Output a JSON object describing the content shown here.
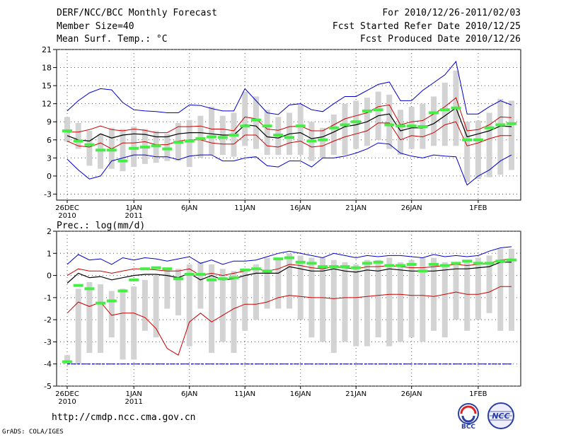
{
  "header": {
    "title": "DERF/NCC/BCC Monthly Forecast",
    "member_size": "Member Size=40",
    "variable": "Mean Surf. Temp.: °C",
    "period": "For 2010/12/26-2011/02/03",
    "start_date": "Fcst Started Refer Date 2010/12/25",
    "produced_date": "Fcst Produced Date 2010/12/26"
  },
  "panel2_label": "Prec.: log(mm/d)",
  "footer": {
    "url": "http://cmdp.ncc.cma.gov.cn",
    "grads": "GrADS: COLA/IGES",
    "logo1": "BCC",
    "logo2": "NCC"
  },
  "colors": {
    "mean": "#000000",
    "spread": "#cc0000",
    "extreme": "#0000cc",
    "box": "#d3d3d3",
    "member": "#44ee44"
  },
  "chart_data": [
    {
      "type": "line",
      "title": "Mean Surf. Temp.: °C",
      "days": 40,
      "ylim": [
        -4,
        21
      ],
      "yticks": [
        -3,
        0,
        3,
        6,
        9,
        12,
        15,
        18,
        21
      ],
      "xticks": [
        {
          "day": 0,
          "label": "26DEC",
          "sub": "2010"
        },
        {
          "day": 6,
          "label": "1JAN",
          "sub": "2011"
        },
        {
          "day": 11,
          "label": "6JAN",
          "sub": ""
        },
        {
          "day": 16,
          "label": "11JAN",
          "sub": ""
        },
        {
          "day": 21,
          "label": "16JAN",
          "sub": ""
        },
        {
          "day": 26,
          "label": "21JAN",
          "sub": ""
        },
        {
          "day": 31,
          "label": "26JAN",
          "sub": ""
        },
        {
          "day": 37,
          "label": "1FEB",
          "sub": ""
        }
      ],
      "series": [
        {
          "name": "max",
          "values": [
            10.8,
            12.5,
            13.8,
            14.5,
            14.3,
            12.2,
            11,
            10.8,
            10.7,
            10.5,
            10.5,
            11.8,
            11.7,
            11.2,
            10.8,
            10.8,
            14.5,
            12.5,
            10.5,
            10.2,
            11.8,
            12,
            11,
            10.7,
            12,
            13.2,
            13.2,
            14.2,
            15.2,
            15.6,
            12.5,
            12.5,
            14.2,
            15.5,
            16.8,
            19,
            10.3,
            10.3,
            11.5,
            12.5,
            11.8
          ]
        },
        {
          "name": "upper",
          "values": [
            7.3,
            7.3,
            7.7,
            8.3,
            7.7,
            7.5,
            7.8,
            7.6,
            7.2,
            7.2,
            8.2,
            8.2,
            8.3,
            7.8,
            7.8,
            7.5,
            9.8,
            9.5,
            7.8,
            7.6,
            8.2,
            8.3,
            7.5,
            7.5,
            8.5,
            9.5,
            10,
            10.5,
            11.5,
            11.8,
            8.5,
            9,
            9.2,
            10.3,
            11.5,
            13,
            7.5,
            7.7,
            8.5,
            9.8,
            9.7
          ]
        },
        {
          "name": "mean",
          "values": [
            6.7,
            6,
            5.8,
            7,
            6.3,
            6.8,
            7,
            6.9,
            6.5,
            6.5,
            7,
            7.2,
            7.2,
            7,
            6.8,
            6.8,
            8.5,
            8.3,
            6.5,
            6.3,
            7,
            7.2,
            6.2,
            6.5,
            7.3,
            8.2,
            8.5,
            9,
            10,
            10.3,
            7.5,
            8,
            8,
            8.7,
            10,
            11.3,
            6.5,
            7,
            7.5,
            8.3,
            8.2
          ]
        },
        {
          "name": "lower",
          "values": [
            5.8,
            5,
            4.8,
            5.5,
            4.5,
            5.5,
            5.5,
            5.7,
            5.2,
            5.2,
            5.8,
            6,
            6,
            5.5,
            5.3,
            5.3,
            6.8,
            6.8,
            5,
            4.8,
            5.5,
            5.8,
            4.8,
            5,
            5.8,
            6.5,
            7,
            7.5,
            8.8,
            8.8,
            6,
            6.7,
            6.5,
            7.2,
            8.5,
            9,
            5,
            5.5,
            6.2,
            6.7,
            6.7
          ]
        },
        {
          "name": "min",
          "values": [
            2.8,
            1,
            -0.5,
            0,
            2.5,
            3,
            3.5,
            3.5,
            3.2,
            3.2,
            2.7,
            3.3,
            3.5,
            3.5,
            2.5,
            2.5,
            3,
            3.2,
            1.7,
            1.5,
            2.5,
            2.5,
            1.5,
            3,
            3,
            3.3,
            3.8,
            4.5,
            5.5,
            5.3,
            3.8,
            3.3,
            3,
            3.5,
            3.3,
            3.2,
            -1.5,
            0,
            1,
            2.5,
            3.5
          ]
        }
      ],
      "boxes": [
        [
          5.7,
          9.8
        ],
        [
          4.5,
          8.8
        ],
        [
          1.7,
          7.5
        ],
        [
          1.2,
          7
        ],
        [
          1.2,
          8
        ],
        [
          0.8,
          7.8
        ],
        [
          1.5,
          8.2
        ],
        [
          2,
          7.8
        ],
        [
          2.2,
          7.5
        ],
        [
          2.5,
          7
        ],
        [
          2.5,
          8.8
        ],
        [
          1.5,
          9.3
        ],
        [
          3,
          10
        ],
        [
          3.5,
          11.5
        ],
        [
          3.5,
          10
        ],
        [
          3.2,
          10.5
        ],
        [
          5,
          14
        ],
        [
          4.5,
          13.2
        ],
        [
          3.5,
          11
        ],
        [
          3.5,
          9.8
        ],
        [
          3.5,
          10.5
        ],
        [
          3.5,
          11.8
        ],
        [
          2.5,
          9
        ],
        [
          3,
          8
        ],
        [
          3.5,
          10.2
        ],
        [
          3.5,
          12
        ],
        [
          4.5,
          12.5
        ],
        [
          5,
          13
        ],
        [
          6,
          14
        ],
        [
          4.5,
          13.5
        ],
        [
          3.5,
          11
        ],
        [
          4.5,
          11.5
        ],
        [
          4.5,
          12
        ],
        [
          5,
          13.2
        ],
        [
          5,
          15.5
        ],
        [
          5,
          17.5
        ],
        [
          -1,
          9
        ],
        [
          -0.5,
          9.2
        ],
        [
          -0.2,
          10.5
        ],
        [
          0.2,
          12.8
        ],
        [
          1,
          12.5
        ]
      ],
      "members": [
        7.5,
        5.8,
        5.2,
        4.3,
        4.3,
        2.5,
        4.6,
        4.8,
        5,
        4.5,
        5.6,
        5.8,
        6.2,
        6.5,
        6.4,
        6.8,
        8.3,
        9.3,
        8.3,
        6.8,
        6.4,
        8.3,
        5.8,
        6,
        8,
        8.5,
        9,
        10.8,
        11,
        8.5,
        8.3,
        8.3,
        8.2,
        10.5,
        11,
        11.3,
        6,
        6,
        8,
        8.5,
        8.7
      ]
    },
    {
      "type": "line",
      "title": "Prec.: log(mm/d)",
      "days": 40,
      "ylim": [
        -5,
        2
      ],
      "yticks": [
        -5,
        -4,
        -3,
        -2,
        -1,
        0,
        1,
        2
      ],
      "baseline": -4,
      "xticks": [
        {
          "day": 0,
          "label": "26DEC",
          "sub": "2010"
        },
        {
          "day": 6,
          "label": "1JAN",
          "sub": "2011"
        },
        {
          "day": 11,
          "label": "6JAN",
          "sub": ""
        },
        {
          "day": 16,
          "label": "11JAN",
          "sub": ""
        },
        {
          "day": 21,
          "label": "16JAN",
          "sub": ""
        },
        {
          "day": 26,
          "label": "21JAN",
          "sub": ""
        },
        {
          "day": 31,
          "label": "26JAN",
          "sub": ""
        },
        {
          "day": 37,
          "label": "1FEB",
          "sub": ""
        }
      ],
      "series": [
        {
          "name": "max",
          "values": [
            0.5,
            0.95,
            0.7,
            0.75,
            0.5,
            0.8,
            0.7,
            0.8,
            0.75,
            0.65,
            0.75,
            0.85,
            0.55,
            0.7,
            0.5,
            0.65,
            0.65,
            0.7,
            0.85,
            1,
            1.1,
            1,
            0.9,
            0.8,
            1,
            0.9,
            0.8,
            0.9,
            0.85,
            0.9,
            0.9,
            0.85,
            0.8,
            0.95,
            0.85,
            0.9,
            0.85,
            0.9,
            1.1,
            1.25,
            1.3
          ]
        },
        {
          "name": "upper",
          "values": [
            0,
            0.3,
            0.2,
            0.2,
            0.1,
            0.2,
            0.3,
            0.3,
            0.25,
            0.2,
            0.2,
            0.3,
            0,
            0.1,
            0,
            0.1,
            0.2,
            0.3,
            0.2,
            0.3,
            0.5,
            0.45,
            0.35,
            0.3,
            0.4,
            0.35,
            0.3,
            0.4,
            0.4,
            0.45,
            0.4,
            0.35,
            0.35,
            0.4,
            0.45,
            0.5,
            0.45,
            0.5,
            0.55,
            0.7,
            0.75
          ]
        },
        {
          "name": "mean",
          "values": [
            -0.35,
            0.1,
            -0.1,
            -0.05,
            -0.2,
            -0.1,
            0,
            0.05,
            0.05,
            0,
            -0.1,
            0.1,
            -0.2,
            0,
            -0.2,
            -0.15,
            0,
            0.1,
            0.1,
            0.1,
            0.4,
            0.3,
            0.2,
            0.2,
            0.3,
            0.2,
            0.15,
            0.25,
            0.2,
            0.3,
            0.25,
            0.2,
            0.2,
            0.2,
            0.25,
            0.3,
            0.3,
            0.35,
            0.4,
            0.6,
            0.6
          ]
        },
        {
          "name": "lower",
          "values": [
            -1.7,
            -1.2,
            -1.4,
            -1.2,
            -1.8,
            -1.7,
            -1.7,
            -1.9,
            -2.4,
            -3.3,
            -3.6,
            -2.1,
            -1.7,
            -2.1,
            -1.8,
            -1.5,
            -1.3,
            -1.3,
            -1.2,
            -1,
            -0.9,
            -0.95,
            -1,
            -1,
            -1.05,
            -1,
            -1,
            -0.95,
            -0.9,
            -0.85,
            -0.85,
            -0.9,
            -0.9,
            -0.95,
            -0.85,
            -0.75,
            -0.85,
            -0.85,
            -0.75,
            -0.5,
            -0.5
          ]
        },
        {
          "name": "min",
          "values": [
            -4,
            -4,
            -4,
            -4,
            -4,
            -4,
            -4,
            -4,
            -4,
            -4,
            -4,
            -4,
            -4,
            -4,
            -4,
            -4,
            -4,
            -4,
            -4,
            -4,
            -4,
            -4,
            -4,
            -4,
            -4,
            -4,
            -4,
            -4,
            -4,
            -4,
            -4,
            -4,
            -4,
            -4,
            -4,
            -4,
            -4,
            -4,
            -4,
            -4,
            -4
          ]
        }
      ],
      "boxes": [
        [
          -4,
          -3.6
        ],
        [
          -4,
          -0.6
        ],
        [
          -3.5,
          -0.3
        ],
        [
          -3.5,
          -0.4
        ],
        [
          -2.8,
          -0.7
        ],
        [
          -3.8,
          -0.6
        ],
        [
          -3.8,
          -0.5
        ],
        [
          -2.5,
          -0.2
        ],
        [
          -2.8,
          0
        ],
        [
          -1.5,
          0.3
        ],
        [
          -1.8,
          0.3
        ],
        [
          -3.2,
          0.5
        ],
        [
          -1.5,
          0.6
        ],
        [
          -3.5,
          0.5
        ],
        [
          -3,
          0.3
        ],
        [
          -3.5,
          0.2
        ],
        [
          -2.5,
          0.3
        ],
        [
          -2,
          0.5
        ],
        [
          -1.5,
          0.8
        ],
        [
          -1.5,
          0.8
        ],
        [
          -1.5,
          1
        ],
        [
          -2,
          0.9
        ],
        [
          -2.8,
          0.8
        ],
        [
          -3,
          0.8
        ],
        [
          -3.5,
          0.7
        ],
        [
          -3,
          0.6
        ],
        [
          -3.2,
          0.5
        ],
        [
          -3.2,
          0.7
        ],
        [
          -2.8,
          0.7
        ],
        [
          -3.2,
          0.8
        ],
        [
          -3,
          0.6
        ],
        [
          -2.8,
          0.7
        ],
        [
          -3,
          0.8
        ],
        [
          -2.5,
          0.8
        ],
        [
          -2.8,
          0.6
        ],
        [
          -2,
          0.5
        ],
        [
          -2.5,
          0.7
        ],
        [
          -2,
          0.8
        ],
        [
          -1.7,
          0.9
        ],
        [
          -2.5,
          1.2
        ],
        [
          -2.5,
          1.2
        ]
      ],
      "members": [
        -3.9,
        -0.45,
        -0.6,
        -1.25,
        -1.15,
        -0.7,
        -0.2,
        0.3,
        0.35,
        0.3,
        -0.15,
        0.05,
        0.05,
        -0.2,
        -0.15,
        -0.1,
        0.25,
        0.3,
        0.2,
        0.75,
        0.8,
        0.6,
        0.55,
        0.4,
        0.4,
        0.4,
        0.35,
        0.55,
        0.6,
        0.45,
        0.45,
        0.5,
        0.2,
        0.5,
        0.45,
        0.55,
        0.65,
        0.55,
        0.55,
        0.65,
        0.7
      ]
    }
  ]
}
